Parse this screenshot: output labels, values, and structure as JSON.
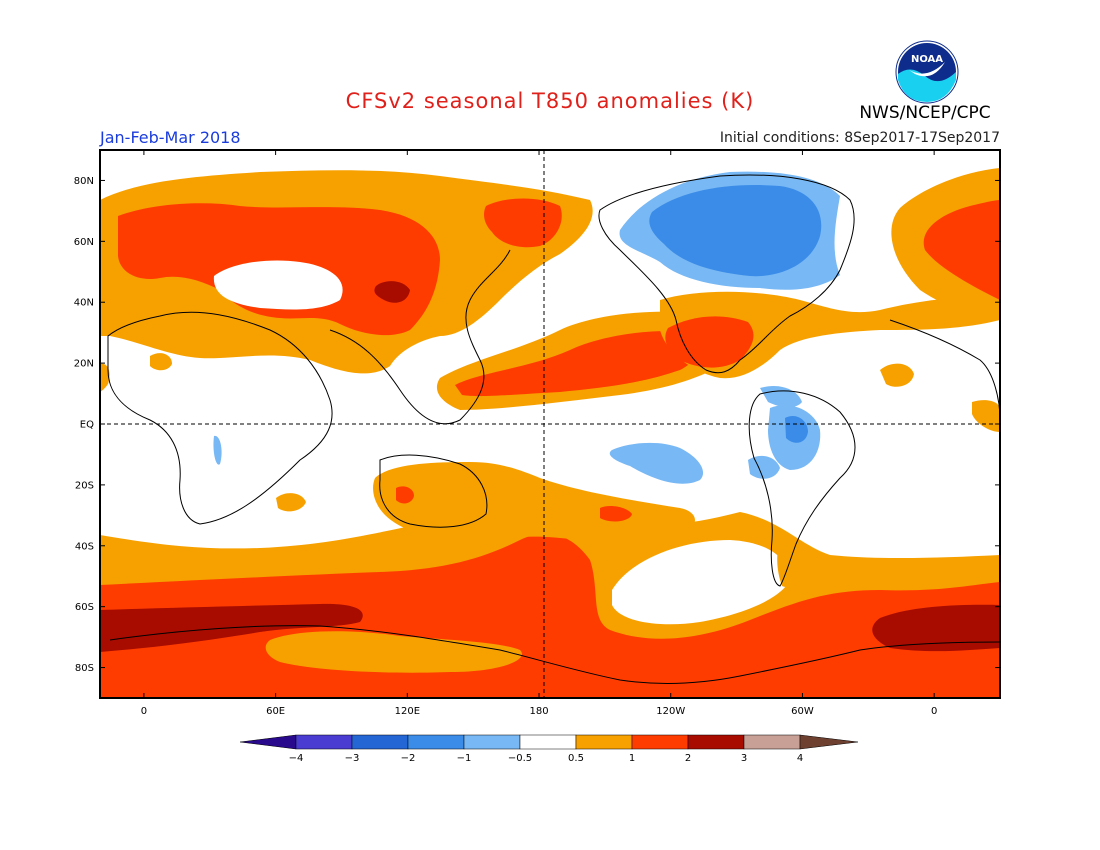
{
  "title": "CFSv2 seasonal T850 anomalies (K)",
  "period": "Jan-Feb-Mar 2018",
  "initial_conditions": "Initial conditions: 8Sep2017-17Sep2017",
  "agency": "NWS/NCEP/CPC",
  "logo_text": "NOAA",
  "colors": {
    "title": "#e0201a",
    "period": "#1a3cdc",
    "frame": "#000000",
    "levels": {
      "lt_-4": "#2a0a8c",
      "-4_-3": "#4a3cd0",
      "-3_-2": "#2466d4",
      "-2_-1": "#3a8ce8",
      "-1_-0.5": "#78b8f4",
      "neutral": "#ffffff",
      "0.5_1": "#f7a100",
      "1_2": "#ff3c00",
      "2_3": "#a80c00",
      "3_4": "#c8a096",
      "gt_4": "#6e4030"
    }
  },
  "map": {
    "lat_labels": [
      "80N",
      "60N",
      "40N",
      "20N",
      "EQ",
      "20S",
      "40S",
      "60S",
      "80S"
    ],
    "lon_labels": [
      "0",
      "60E",
      "120E",
      "180",
      "120W",
      "60W",
      "0"
    ],
    "lat_values": [
      80,
      60,
      40,
      20,
      0,
      -20,
      -40,
      -60,
      -80
    ],
    "lon_values": [
      0,
      60,
      120,
      180,
      240,
      300,
      360
    ],
    "lon_range": [
      -20,
      390
    ],
    "lat_range": [
      -90,
      90
    ]
  },
  "colorbar": {
    "ticks": [
      "−4",
      "−3",
      "−2",
      "−1",
      "−0.5",
      "0.5",
      "1",
      "2",
      "3",
      "4"
    ],
    "bins": [
      {
        "name": "-4_-3",
        "color": "#4a3cd0"
      },
      {
        "name": "-3_-2",
        "color": "#2466d4"
      },
      {
        "name": "-2_-1",
        "color": "#3a8ce8"
      },
      {
        "name": "-1_-0.5",
        "color": "#78b8f4"
      },
      {
        "name": "neutral",
        "color": "#ffffff"
      },
      {
        "name": "0.5_1",
        "color": "#f7a100"
      },
      {
        "name": "1_2",
        "color": "#ff3c00"
      },
      {
        "name": "2_3",
        "color": "#a80c00"
      },
      {
        "name": "3_4",
        "color": "#c8a096"
      }
    ],
    "low_arrow_color": "#2a0a8c",
    "high_arrow_color": "#6e4030"
  }
}
